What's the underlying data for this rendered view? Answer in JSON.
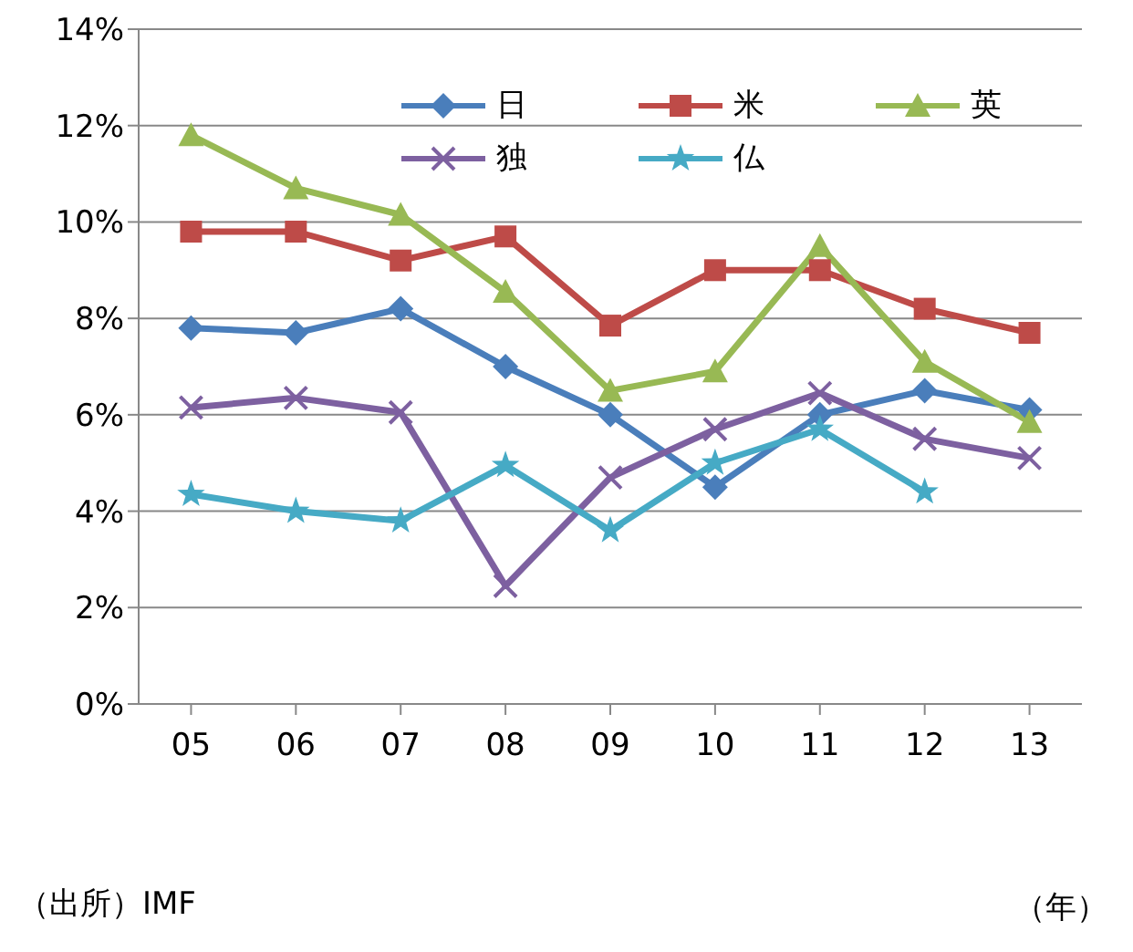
{
  "chart_data": {
    "type": "line",
    "xlabel": "（年）",
    "annotations": [
      "（出所）IMF"
    ],
    "categories": [
      "05",
      "06",
      "07",
      "08",
      "09",
      "10",
      "11",
      "12",
      "13"
    ],
    "series": [
      {
        "name": "日",
        "color": "#4a7ebb",
        "marker": "diamond",
        "values": [
          7.8,
          7.7,
          8.2,
          7.0,
          6.0,
          4.5,
          6.0,
          6.5,
          6.1
        ]
      },
      {
        "name": "米",
        "color": "#be4b48",
        "marker": "square",
        "values": [
          9.8,
          9.8,
          9.2,
          9.7,
          7.85,
          9.0,
          9.0,
          8.2,
          7.7
        ]
      },
      {
        "name": "英",
        "color": "#98b954",
        "marker": "triangle",
        "values": [
          11.8,
          10.7,
          10.15,
          8.55,
          6.5,
          6.9,
          9.5,
          7.1,
          5.85
        ]
      },
      {
        "name": "独",
        "color": "#7d60a0",
        "marker": "cross",
        "values": [
          6.15,
          6.35,
          6.05,
          2.45,
          4.7,
          5.7,
          6.45,
          5.5,
          5.1
        ]
      },
      {
        "name": "仏",
        "color": "#46aac5",
        "marker": "star",
        "values": [
          4.35,
          4.0,
          3.8,
          4.95,
          3.6,
          5.0,
          5.7,
          4.4,
          null
        ]
      }
    ],
    "ylim": [
      0,
      14
    ],
    "yticks": [
      {
        "value": 0,
        "label": "0%"
      },
      {
        "value": 2,
        "label": "2%"
      },
      {
        "value": 4,
        "label": "4%"
      },
      {
        "value": 6,
        "label": "6%"
      },
      {
        "value": 8,
        "label": "8%"
      },
      {
        "value": 10,
        "label": "10%"
      },
      {
        "value": 12,
        "label": "12%"
      },
      {
        "value": 14,
        "label": "14%"
      }
    ],
    "grid": "y",
    "legend": "top",
    "line_style": "solid"
  }
}
